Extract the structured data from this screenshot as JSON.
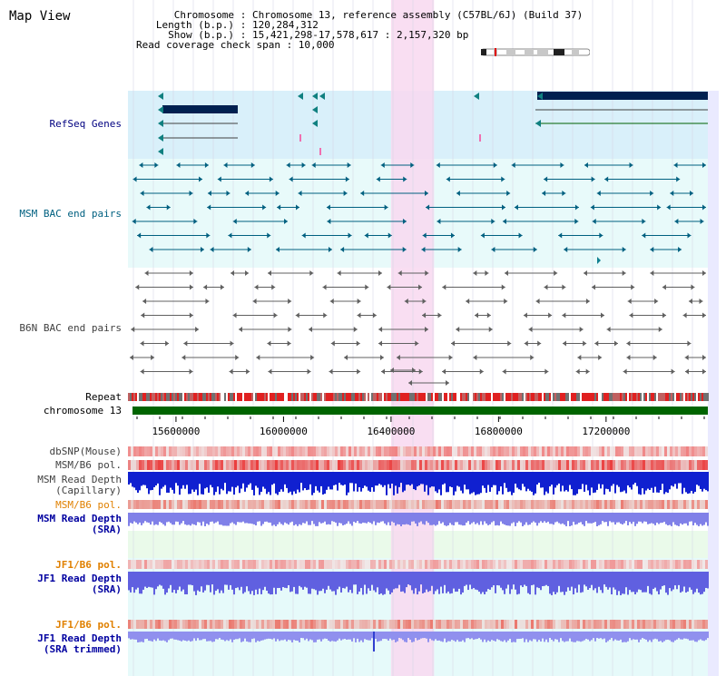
{
  "page": {
    "title": "Map View"
  },
  "chromosome_info": {
    "rows": [
      {
        "key": "Chromosome",
        "value": "Chromosome 13, reference assembly (C57BL/6J) (Build 37)"
      },
      {
        "key": "Length (b.p.)",
        "value": "120,284,312"
      },
      {
        "key": "Show (b.p.)",
        "value": "15,421,298-17,578,617 : 2,157,320 bp"
      }
    ],
    "span_line": "Read coverage check span : 10,000"
  },
  "tracks": {
    "refseq": "RefSeq Genes",
    "msm_bac": "MSM BAC end pairs",
    "b6n_bac": "B6N BAC end pairs",
    "repeat": "Repeat",
    "chromosome": "chromosome 13",
    "dbsnp": "dbSNP(Mouse)",
    "msm_b6_pol_1": "MSM/B6 pol.",
    "msm_read_depth_cap_1": "MSM Read Depth",
    "msm_read_depth_cap_2": "(Capillary)",
    "msm_b6_pol_2": "MSM/B6 pol.",
    "msm_read_depth_sra_1": "MSM Read Depth",
    "msm_read_depth_sra_2": "(SRA)",
    "jf1_b6_pol_1": "JF1/B6 pol.",
    "jf1_read_depth_1": "JF1 Read Depth",
    "jf1_read_depth_2": "(SRA)",
    "jf1_b6_pol_2": "JF1/B6 pol.",
    "jf1_read_depth_trim_1": "JF1 Read Depth",
    "jf1_read_depth_trim_2": "(SRA trimmed)"
  },
  "axis": {
    "ticks": [
      15600000,
      16000000,
      16400000,
      16800000,
      17200000
    ],
    "tick_labels": [
      "15600000",
      "16000000",
      "16400000",
      "16800000",
      "17200000"
    ],
    "range_bp": [
      15421298,
      17578617
    ]
  },
  "highlight": {
    "start_bp": 16400000,
    "end_bp": 16560000
  },
  "colors": {
    "refseq_label": "#000080",
    "msm_label": "#006080",
    "b6n_label": "#404040",
    "orange_label": "#e08000",
    "blue_label": "#0000a0",
    "refseq_bg": "#d9f0fa",
    "msm_bg": "#e8fafa",
    "highlight": "#f8d8f0",
    "gene_navy": "#002050",
    "chromosome_green": "#006400"
  }
}
